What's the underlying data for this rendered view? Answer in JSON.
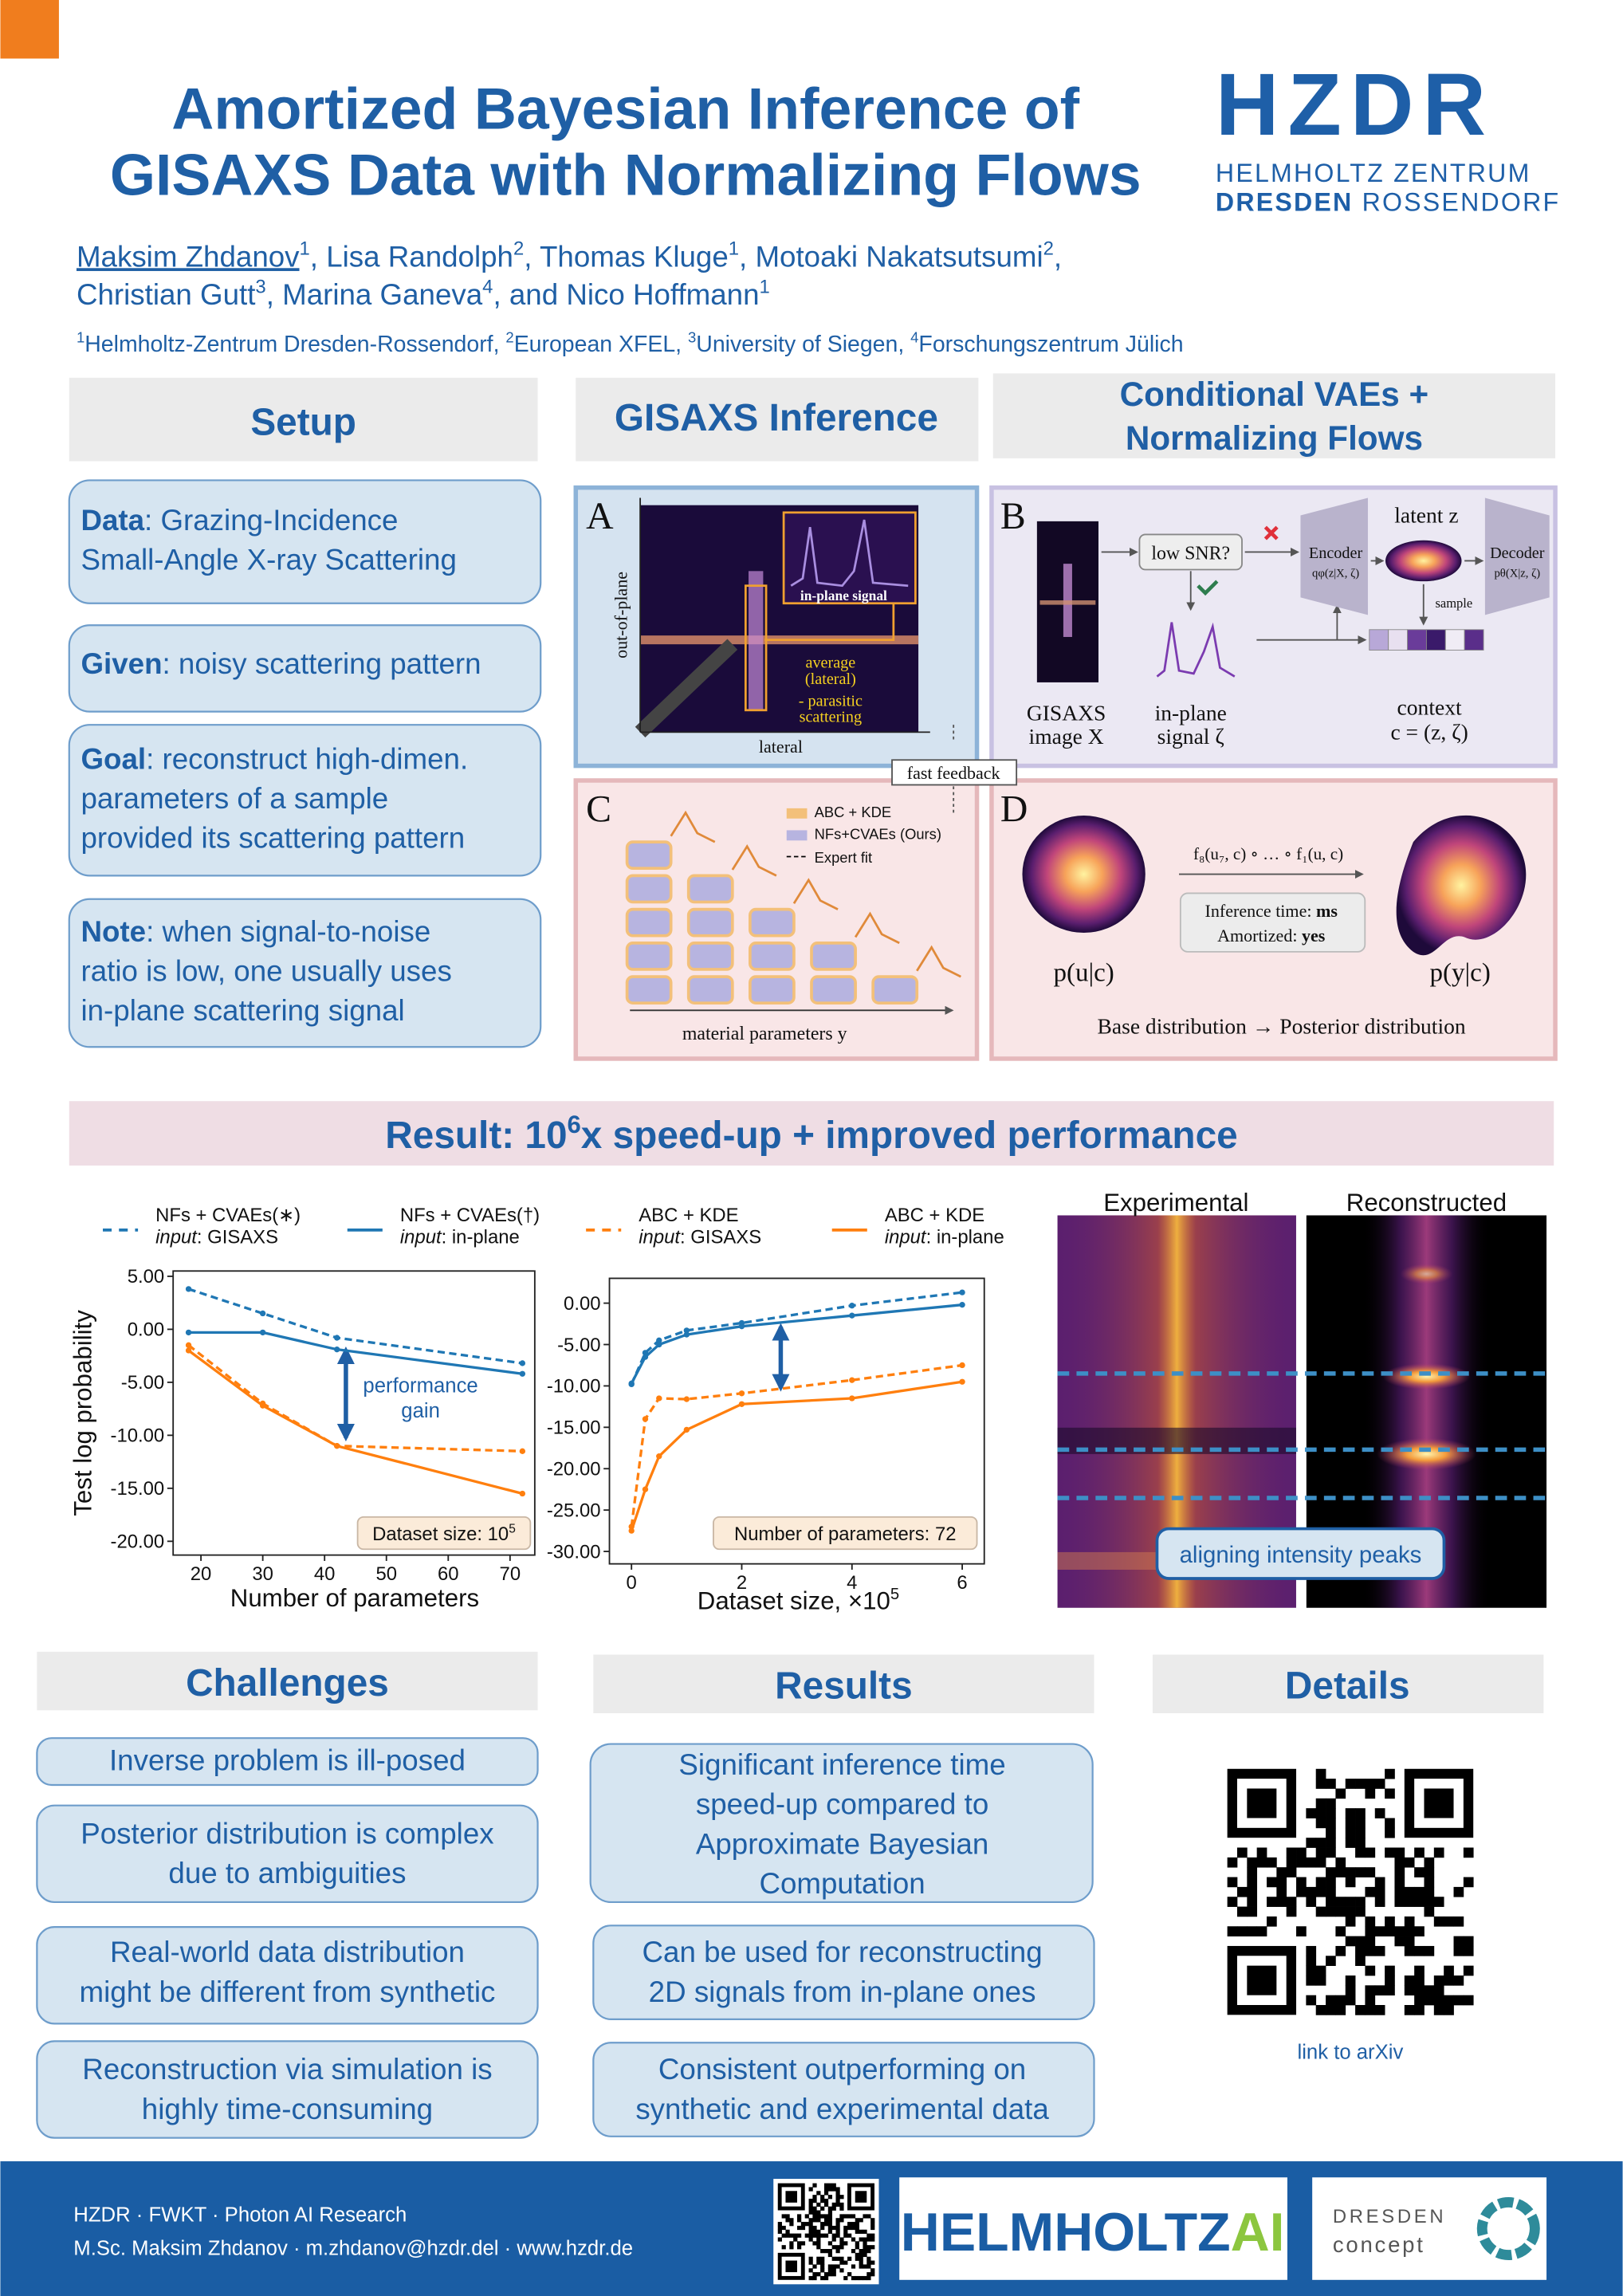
{
  "header": {
    "title": [
      "Amortized Bayesian Inference of",
      "GISAXS Data with Normalizing Flows"
    ],
    "authors": [
      [
        {
          "text": "Maksim Zhdanov",
          "sup": "1"
        },
        {
          "text": ", Lisa Randolph",
          "sup": "2"
        },
        {
          "text": ", Thomas Kluge",
          "sup": "1"
        },
        {
          "text": ", Motoaki Nakatsutsumi",
          "sup": "2"
        },
        {
          "text": ","
        }
      ],
      [
        {
          "text": "Christian Gutt",
          "sup": "3"
        },
        {
          "text": ", Marina Ganeva",
          "sup": "4"
        },
        {
          "text": ", and Nico Hoffmann",
          "sup": "1"
        }
      ]
    ],
    "affiliations": [
      {
        "sup": "1",
        "text": "Helmholtz-Zentrum Dresden-Rossendorf, "
      },
      {
        "sup": "2",
        "text": "European XFEL, "
      },
      {
        "sup": "3",
        "text": "University of Siegen, "
      },
      {
        "sup": "4",
        "text": "Forschungszentrum Jülich"
      }
    ],
    "logo": {
      "mark": "HZDR",
      "line1": "HELMHOLTZ ZENTRUM",
      "line2": {
        "bold": "DRESDEN",
        "text": " ROSSENDORF"
      }
    }
  },
  "setup": {
    "title": "Setup",
    "items": [
      {
        "label": "Data",
        "lines": [
          ": Grazing-Incidence",
          "Small-Angle X-ray Scattering"
        ]
      },
      {
        "label": "Given",
        "lines": [
          ": noisy scattering pattern"
        ]
      },
      {
        "label": "Goal",
        "lines": [
          ": reconstruct high-dimen.",
          "parameters of a sample",
          "provided its scattering pattern"
        ]
      },
      {
        "label": "Note",
        "lines": [
          ": when signal-to-noise",
          "ratio is low, one usually uses",
          "in-plane scattering signal"
        ]
      }
    ]
  },
  "gisaxs": {
    "title": "GISAXS Inference"
  },
  "cvae": {
    "title": [
      "Conditional VAEs +",
      "Normalizing Flows"
    ]
  },
  "panels": {
    "A": {
      "label": "A",
      "y_axis": "out-of-plane",
      "x_axis": "lateral",
      "inset": "in-plane signal",
      "note": [
        "average",
        "(lateral)",
        "- parasitic",
        "scattering"
      ]
    },
    "feedback": "fast feedback",
    "B": {
      "label": "B",
      "question": "low SNR?",
      "encoder": [
        "Encoder",
        "qφ(z|X, ζ)"
      ],
      "latent": "latent z",
      "decoder": [
        "Decoder",
        "pθ(X|z, ζ)"
      ],
      "sample": "sample",
      "image": [
        "GISAXS",
        "image X"
      ],
      "signal": [
        "in-plane",
        "signal ζ"
      ],
      "context": [
        "context",
        "c = (z, ζ)"
      ]
    },
    "C": {
      "label": "C",
      "legend": [
        "ABC + KDE",
        "NFs+CVAEs (Ours)",
        "Expert fit"
      ],
      "x_axis": "material parameters y"
    },
    "D": {
      "label": "D",
      "flow": "f₈(u₇, c) ∘ … ∘ f₁(u, c)",
      "time": {
        "text": "Inference time: ",
        "bold": "ms"
      },
      "amortized": {
        "text": "Amortized: ",
        "bold": "yes"
      },
      "base": "p(u|c)",
      "posterior": "p(y|c)",
      "caption": "Base distribution  →  Posterior distribution"
    }
  },
  "result": {
    "title": {
      "text": "Result: 10",
      "sup": "6",
      "rest": "x speed-up + improved performance"
    }
  },
  "chart_data": [
    {
      "type": "line",
      "x": [
        18,
        30,
        42,
        72
      ],
      "xlim": [
        15.5,
        74
      ],
      "xticks": [
        20,
        30,
        40,
        50,
        60,
        70
      ],
      "ylim": [
        -21.3,
        5.5
      ],
      "yticks": [
        {
          "value": 5,
          "label": "5.00"
        },
        {
          "value": 0,
          "label": "0.00"
        },
        {
          "value": -5,
          "label": "-5.00"
        },
        {
          "value": -10,
          "label": "-10.00"
        },
        {
          "value": -15,
          "label": "-15.00"
        },
        {
          "value": -20,
          "label": "-20.00"
        }
      ],
      "xlabel": "Number of parameters",
      "ylabel": "Test log probability",
      "series": [
        {
          "name": "NFs + CVAEs(∗)",
          "input": {
            "label": "input",
            "text": ": GISAXS"
          },
          "color": "#1f77b4",
          "dashed": true,
          "values": [
            3.8,
            1.5,
            -0.8,
            -3.2
          ]
        },
        {
          "name": "NFs + CVAEs(†)",
          "input": {
            "label": "input",
            "text": ": in-plane"
          },
          "color": "#1f77b4",
          "dashed": false,
          "values": [
            -0.3,
            -0.3,
            -1.9,
            -4.2
          ]
        },
        {
          "name": "ABC + KDE",
          "input": {
            "label": "input",
            "text": ": GISAXS"
          },
          "color": "#ff7f0e",
          "dashed": true,
          "values": [
            -1.5,
            -7.0,
            -11.0,
            -11.5
          ]
        },
        {
          "name": "ABC + KDE",
          "input": {
            "label": "input",
            "text": ": in-plane"
          },
          "color": "#ff7f0e",
          "dashed": false,
          "values": [
            -2.0,
            -7.2,
            -11.0,
            -15.5
          ]
        }
      ],
      "annotation": [
        "performance",
        "gain"
      ],
      "note": {
        "text": "Dataset size: 10",
        "sup": "5"
      }
    },
    {
      "type": "line",
      "x": [
        0,
        0.25,
        0.5,
        1,
        2,
        4,
        6
      ],
      "xlim": [
        -0.4,
        6.4
      ],
      "xticks": [
        0,
        2,
        4,
        6
      ],
      "ylim": [
        -31.5,
        3
      ],
      "yticks": [
        {
          "value": 0,
          "label": "0.00"
        },
        {
          "value": -5,
          "label": "-5.00"
        },
        {
          "value": -10,
          "label": "-10.00"
        },
        {
          "value": -15,
          "label": "-15.00"
        },
        {
          "value": -20,
          "label": "-20.00"
        },
        {
          "value": -25,
          "label": "-25.00"
        },
        {
          "value": -30,
          "label": "-30.00"
        }
      ],
      "xlabel": {
        "text": "Dataset size, ×10",
        "sup": "5"
      },
      "series": [
        {
          "color": "#1f77b4",
          "dashed": true,
          "values": [
            -9.8,
            -6.0,
            -4.5,
            -3.3,
            -2.4,
            -0.3,
            1.3
          ]
        },
        {
          "color": "#1f77b4",
          "dashed": false,
          "values": [
            -9.7,
            -6.5,
            -5.0,
            -3.8,
            -2.8,
            -1.5,
            -0.2
          ]
        },
        {
          "color": "#ff7f0e",
          "dashed": true,
          "values": [
            -27.0,
            -14.0,
            -11.5,
            -11.6,
            -10.9,
            -9.3,
            -7.5
          ]
        },
        {
          "color": "#ff7f0e",
          "dashed": false,
          "values": [
            -27.5,
            -22.5,
            -18.5,
            -15.3,
            -12.2,
            -11.5,
            -9.5
          ]
        }
      ],
      "note": {
        "text": "Number of parameters: 72"
      }
    }
  ],
  "reconstruction": {
    "left": "Experimental",
    "right": "Reconstructed",
    "note": "aligning intensity peaks"
  },
  "challenges": {
    "title": "Challenges",
    "items": [
      [
        "Inverse problem is ill-posed"
      ],
      [
        "Posterior distribution is complex",
        "due to ambiguities"
      ],
      [
        "Real-world data distribution",
        "might be different from synthetic"
      ],
      [
        "Reconstruction via simulation is",
        "highly time-consuming"
      ]
    ]
  },
  "results": {
    "title": "Results",
    "items": [
      [
        "Significant inference time",
        "speed-up compared to",
        "Approximate Bayesian",
        "Computation"
      ],
      [
        "Can be used for reconstructing",
        "2D signals from in-plane ones"
      ],
      [
        "Consistent outperforming on",
        "synthetic and experimental data"
      ]
    ]
  },
  "details": {
    "title": "Details",
    "link": "link to arXiv"
  },
  "footer": {
    "lines": [
      "HZDR · FWKT · Photon AI Research",
      "M.Sc. Maksim Zhdanov · m.zhdanov@hzdr.del · www.hzdr.de"
    ],
    "helmholtz": {
      "text": "HELMHOLTZ",
      "ai": "AI"
    },
    "dresden": [
      "DRESDEN",
      "concept"
    ]
  }
}
